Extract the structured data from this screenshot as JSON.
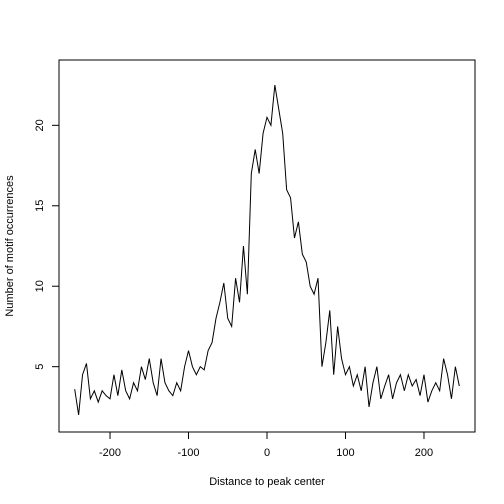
{
  "chart_data": {
    "type": "line",
    "xlabel": "Distance to peak center",
    "ylabel": "Number of motif occurrences",
    "x": [
      -245,
      -240,
      -235,
      -230,
      -225,
      -220,
      -215,
      -210,
      -205,
      -200,
      -195,
      -190,
      -185,
      -180,
      -175,
      -170,
      -165,
      -160,
      -155,
      -150,
      -145,
      -140,
      -135,
      -130,
      -125,
      -120,
      -115,
      -110,
      -105,
      -100,
      -95,
      -90,
      -85,
      -80,
      -75,
      -70,
      -65,
      -60,
      -55,
      -50,
      -45,
      -40,
      -35,
      -30,
      -25,
      -20,
      -15,
      -10,
      -5,
      0,
      5,
      10,
      15,
      20,
      25,
      30,
      35,
      40,
      45,
      50,
      55,
      60,
      65,
      70,
      75,
      80,
      85,
      90,
      95,
      100,
      105,
      110,
      115,
      120,
      125,
      130,
      135,
      140,
      145,
      150,
      155,
      160,
      165,
      170,
      175,
      180,
      185,
      190,
      195,
      200,
      205,
      210,
      215,
      220,
      225,
      230,
      235,
      240,
      245
    ],
    "series": [
      {
        "color": "#000000",
        "values": [
          3.6,
          2.0,
          4.5,
          5.2,
          3.0,
          3.5,
          2.8,
          3.5,
          3.2,
          3.0,
          4.5,
          3.2,
          4.8,
          3.5,
          3.0,
          4.0,
          3.5,
          5.0,
          4.2,
          5.5,
          4.0,
          3.2,
          5.5,
          4.0,
          3.5,
          3.2,
          4.0,
          3.5,
          5.0,
          6.0,
          5.0,
          4.5,
          5.0,
          4.8,
          6.0,
          6.5,
          8.0,
          9.0,
          10.2,
          8.0,
          7.5,
          10.5,
          9.0,
          12.5,
          9.5,
          17.0,
          18.5,
          17.0,
          19.5,
          20.5,
          20.0,
          22.5,
          21.0,
          19.5,
          16.0,
          15.5,
          13.0,
          14.0,
          12.0,
          11.5,
          10.0,
          9.5,
          10.5,
          5.0,
          6.5,
          8.5,
          4.5,
          7.5,
          5.5,
          4.5,
          5.0,
          3.8,
          4.5,
          3.5,
          5.0,
          2.5,
          4.0,
          5.0,
          3.0,
          3.8,
          4.5,
          3.0,
          4.0,
          4.5,
          3.5,
          4.5,
          3.8,
          4.2,
          3.2,
          4.5,
          2.8,
          3.5,
          4.0,
          3.5,
          5.5,
          4.5,
          3.0,
          5.0,
          3.8
        ]
      }
    ],
    "xlim": [
      -265,
      265
    ],
    "xticks": [
      -200,
      -100,
      0,
      100,
      200
    ],
    "ylim": [
      0.94,
      24.06
    ],
    "yticks": [
      5,
      10,
      15,
      20
    ]
  }
}
